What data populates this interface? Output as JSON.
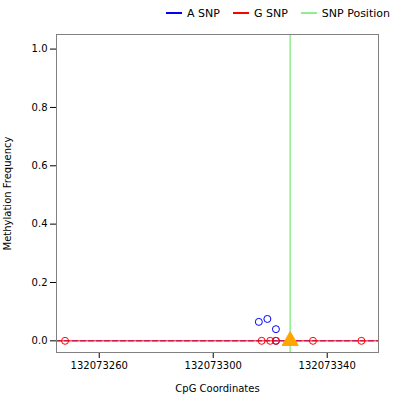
{
  "chart_data": {
    "type": "scatter",
    "xlabel": "CpG Coordinates",
    "ylabel": "Methylation Frequency",
    "xlim": [
      132073245,
      132073358
    ],
    "ylim": [
      -0.04,
      1.05
    ],
    "xticks": [
      132073260,
      132073300,
      132073340
    ],
    "yticks": [
      {
        "value": 0.0,
        "label": "0.0"
      },
      0.2,
      0.4,
      0.6,
      0.8,
      {
        "value": 1.0,
        "label": "1.0"
      }
    ],
    "legend": "upper right",
    "series": [
      {
        "name": "A SNP",
        "type": "line",
        "color": "#0000FF",
        "line_style": "dashed",
        "x": [
          132073245,
          132073358
        ],
        "values": [
          0.0,
          0.0
        ]
      },
      {
        "name": "G SNP",
        "type": "line",
        "color": "#FF0000",
        "line_style": "solid",
        "x": [
          132073245,
          132073358
        ],
        "values": [
          0.0,
          0.0
        ]
      },
      {
        "name": "SNP Position",
        "type": "vline",
        "color": "#90EE90",
        "x": 132073327
      },
      {
        "type": "scatter",
        "color": "#0000FF",
        "marker": "open_circle",
        "x": [
          132073316,
          132073319,
          132073322,
          132073322
        ],
        "values": [
          0.065,
          0.075,
          0.04,
          0.0
        ]
      },
      {
        "type": "scatter",
        "color": "#FF0000",
        "marker": "open_circle",
        "x": [
          132073248,
          132073317,
          132073320,
          132073322,
          132073335,
          132073352
        ],
        "values": [
          0.0,
          0.0,
          0.0,
          0.0,
          0.0,
          0.0
        ]
      },
      {
        "type": "scatter",
        "color": "#FFA500",
        "marker": "triangle",
        "x": [
          132073327
        ],
        "values": [
          0.0
        ]
      }
    ]
  }
}
